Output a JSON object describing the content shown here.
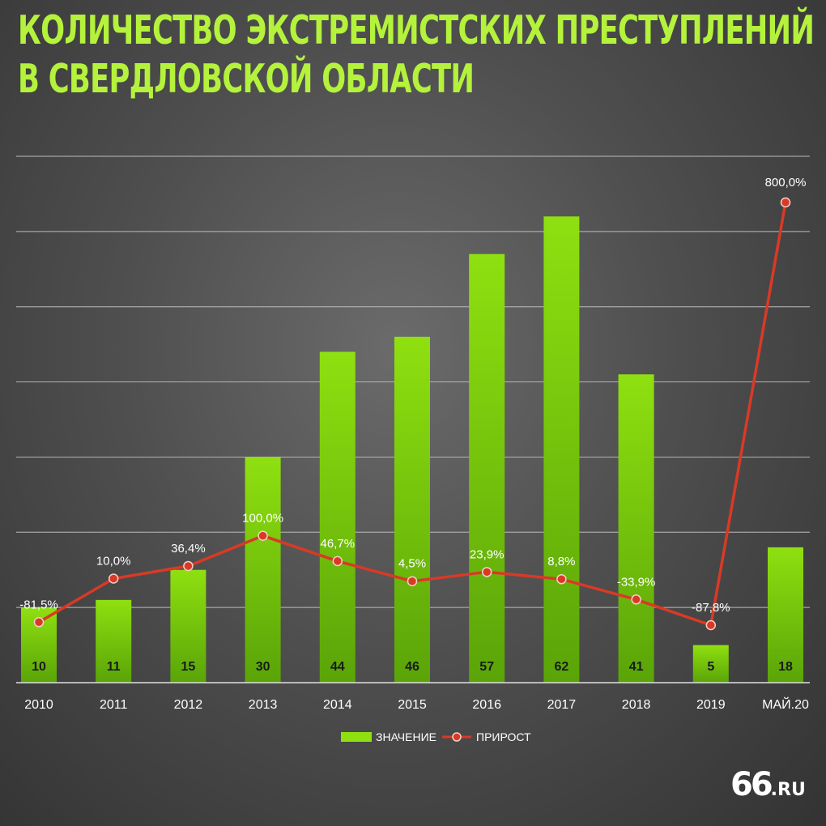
{
  "title_lines": [
    "КОЛИЧЕСТВО ЭКСТРЕМИСТСКИХ ПРЕСТУПЛЕНИЙ",
    "В СВЕРДЛОВСКОЙ ОБЛАСТИ"
  ],
  "brand": {
    "number": "66",
    "domain": ".RU"
  },
  "colors": {
    "bar": "#8fe010",
    "bar_dark": "#5aa408",
    "line": "#d83a26",
    "title": "#b4f23c",
    "grid": "#bdbdbd"
  },
  "chart_data": {
    "type": "bar",
    "categories": [
      "2010",
      "2011",
      "2012",
      "2013",
      "2014",
      "2015",
      "2016",
      "2017",
      "2018",
      "2019",
      "МАЙ.20"
    ],
    "series": [
      {
        "name": "ЗНАЧЕНИЕ",
        "type": "bar",
        "values": [
          10,
          11,
          15,
          30,
          44,
          46,
          57,
          62,
          41,
          5,
          18
        ],
        "data_labels": [
          "10",
          "11",
          "15",
          "30",
          "44",
          "46",
          "57",
          "62",
          "41",
          "5",
          "18"
        ]
      },
      {
        "name": "ПРИРОСТ",
        "type": "line",
        "values": [
          -81.5,
          10.0,
          36.4,
          100.0,
          46.7,
          4.5,
          23.9,
          8.8,
          -33.9,
          -87.8,
          800.0
        ],
        "data_labels": [
          "-81,5%",
          "10,0%",
          "36,4%",
          "100,0%",
          "46,7%",
          "4,5%",
          "23,9%",
          "8,8%",
          "-33,9%",
          "-87,8%",
          "800,0%"
        ]
      }
    ],
    "ylim": [
      0,
      70
    ],
    "grid": true,
    "legend": "bottom-center"
  }
}
